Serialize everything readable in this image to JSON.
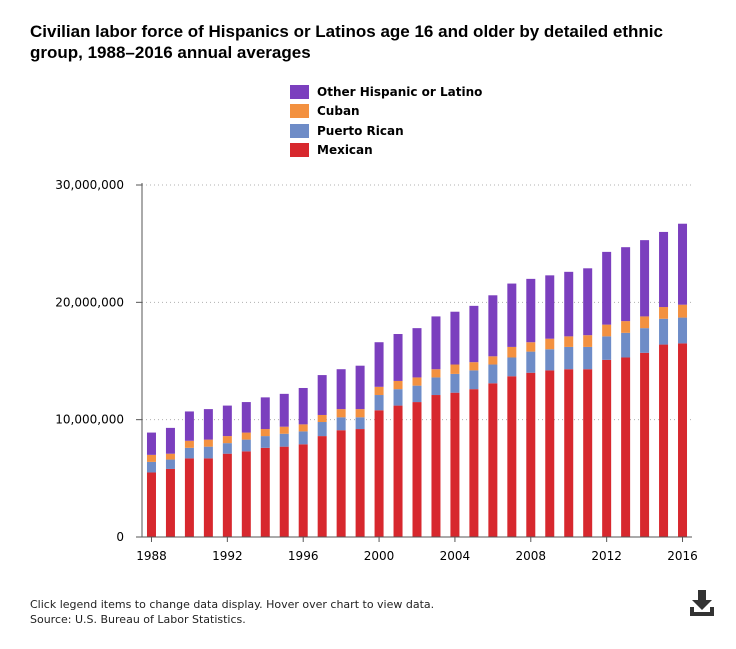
{
  "title": "Civilian labor force of Hispanics or Latinos age 16 and older by detailed ethnic group, 1988–2016 annual averages",
  "legend": [
    {
      "label": "Other Hispanic or Latino",
      "color": "#7b3fbe"
    },
    {
      "label": "Cuban",
      "color": "#f39140"
    },
    {
      "label": "Puerto Rican",
      "color": "#6e8cc7"
    },
    {
      "label": "Mexican",
      "color": "#d7282e"
    }
  ],
  "footer": {
    "note": "Click legend items to change data display. Hover over chart to view data.",
    "source": "Source: U.S. Bureau of Labor Statistics."
  },
  "download_icon": "download-icon",
  "chart_data": {
    "type": "bar",
    "stacked": true,
    "title": "Civilian labor force of Hispanics or Latinos age 16 and older by detailed ethnic group, 1988–2016 annual averages",
    "xlabel": "",
    "ylabel": "",
    "ylim": [
      0,
      30000000
    ],
    "yticks": [
      0,
      10000000,
      20000000,
      30000000
    ],
    "ytick_labels": [
      "0",
      "10,000,000",
      "20,000,000",
      "30,000,000"
    ],
    "xtick_labels": [
      "1988",
      "1992",
      "1996",
      "2000",
      "2004",
      "2008",
      "2012",
      "2016"
    ],
    "grid": true,
    "categories": [
      "1988",
      "1989",
      "1990",
      "1991",
      "1992",
      "1993",
      "1994",
      "1995",
      "1996",
      "1997",
      "1998",
      "1999",
      "2000",
      "2001",
      "2002",
      "2003",
      "2004",
      "2005",
      "2006",
      "2007",
      "2008",
      "2009",
      "2010",
      "2011",
      "2012",
      "2013",
      "2014",
      "2015",
      "2016"
    ],
    "series": [
      {
        "name": "Mexican",
        "color": "#d7282e",
        "values": [
          5500000,
          5800000,
          6700000,
          6700000,
          7100000,
          7300000,
          7600000,
          7700000,
          7900000,
          8600000,
          9100000,
          9200000,
          10800000,
          11200000,
          11500000,
          12100000,
          12300000,
          12600000,
          13100000,
          13700000,
          14000000,
          14200000,
          14300000,
          14300000,
          15100000,
          15300000,
          15700000,
          16400000,
          16500000
        ]
      },
      {
        "name": "Puerto Rican",
        "color": "#6e8cc7",
        "values": [
          900000,
          800000,
          900000,
          1000000,
          900000,
          1000000,
          1000000,
          1100000,
          1100000,
          1200000,
          1100000,
          1000000,
          1300000,
          1400000,
          1400000,
          1500000,
          1600000,
          1600000,
          1600000,
          1600000,
          1800000,
          1800000,
          1900000,
          1900000,
          2000000,
          2100000,
          2100000,
          2200000,
          2200000
        ]
      },
      {
        "name": "Cuban",
        "color": "#f39140",
        "values": [
          600000,
          500000,
          600000,
          600000,
          600000,
          600000,
          600000,
          600000,
          600000,
          600000,
          700000,
          700000,
          700000,
          700000,
          700000,
          700000,
          800000,
          700000,
          700000,
          900000,
          800000,
          900000,
          900000,
          1000000,
          1000000,
          1000000,
          1000000,
          1000000,
          1100000
        ]
      },
      {
        "name": "Other Hispanic or Latino",
        "color": "#7b3fbe",
        "values": [
          1900000,
          2200000,
          2500000,
          2600000,
          2600000,
          2600000,
          2700000,
          2800000,
          3100000,
          3400000,
          3400000,
          3700000,
          3800000,
          4000000,
          4200000,
          4500000,
          4500000,
          4800000,
          5200000,
          5400000,
          5400000,
          5400000,
          5500000,
          5700000,
          6200000,
          6300000,
          6500000,
          6400000,
          6900000
        ]
      }
    ]
  }
}
